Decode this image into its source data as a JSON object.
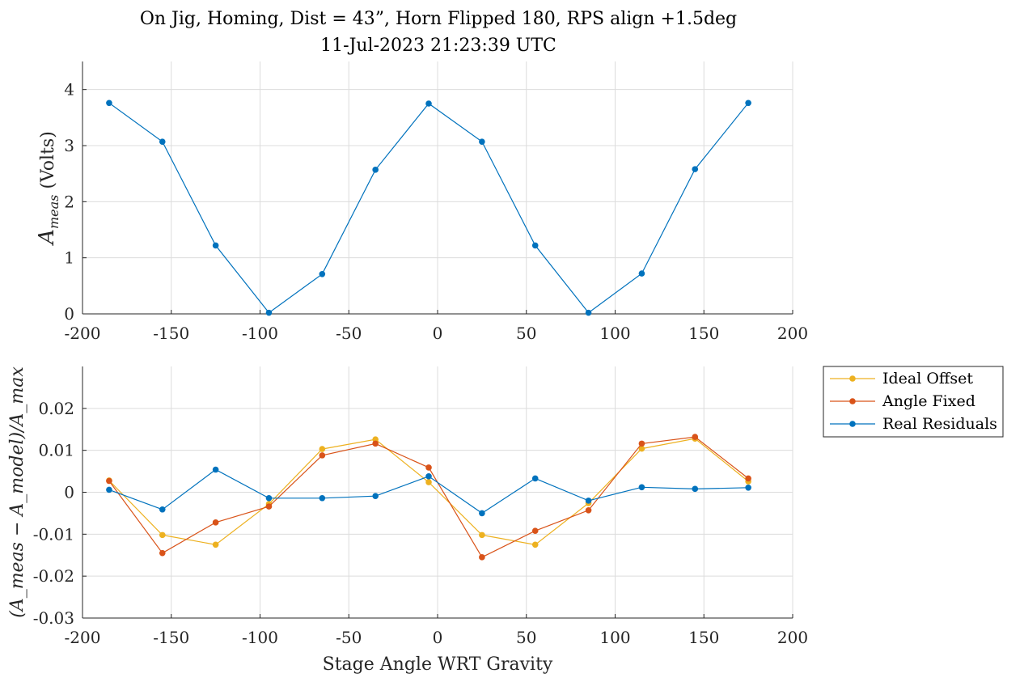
{
  "title_line1": "On Jig, Homing, Dist = 43”, Horn Flipped 180, RPS align +1.5deg",
  "title_line2": "11-Jul-2023 21:23:39 UTC",
  "chart_data": [
    {
      "type": "line",
      "ylabel_main": "A",
      "ylabel_sub": "meas",
      "ylabel_unit": " (Volts)",
      "xlim": [
        -200,
        200
      ],
      "ylim": [
        0,
        4.5
      ],
      "xticks": [
        -200,
        -150,
        -100,
        -50,
        0,
        50,
        100,
        150,
        200
      ],
      "yticks": [
        0,
        1,
        2,
        3,
        4
      ],
      "grid": true,
      "x": [
        -185,
        -155,
        -125,
        -95,
        -65,
        -35,
        -5,
        25,
        55,
        85,
        115,
        145,
        175
      ],
      "series": [
        {
          "color": "#0072bd",
          "values": [
            3.76,
            3.07,
            1.22,
            0.02,
            0.71,
            2.57,
            3.75,
            3.07,
            1.22,
            0.02,
            0.72,
            2.58,
            3.76
          ]
        }
      ]
    },
    {
      "type": "line",
      "ylabel": "(A_meas − A_model)/A_max",
      "xlabel": "Stage Angle WRT Gravity",
      "xlim": [
        -200,
        200
      ],
      "ylim": [
        -0.03,
        0.03
      ],
      "xticks": [
        -200,
        -150,
        -100,
        -50,
        0,
        50,
        100,
        150,
        200
      ],
      "yticks": [
        -0.03,
        -0.02,
        -0.01,
        0,
        0.01,
        0.02
      ],
      "ytick_labels": [
        "-0.03",
        "-0.02",
        "-0.01",
        "0",
        "0.01",
        "0.02"
      ],
      "grid": true,
      "legend_position": "outside-right",
      "x": [
        -185,
        -155,
        -125,
        -95,
        -65,
        -35,
        -5,
        25,
        55,
        85,
        115,
        145,
        175
      ],
      "series": [
        {
          "name": "Ideal Offset",
          "color": "#edb120",
          "values": [
            0.0028,
            -0.0102,
            -0.0125,
            -0.0028,
            0.0103,
            0.0126,
            0.0024,
            -0.0102,
            -0.0125,
            -0.0026,
            0.0104,
            0.0128,
            0.0026
          ]
        },
        {
          "name": "Angle Fixed",
          "color": "#d95319",
          "values": [
            0.0027,
            -0.0145,
            -0.0072,
            -0.0034,
            0.0088,
            0.0116,
            0.0059,
            -0.0155,
            -0.0092,
            -0.0043,
            0.0116,
            0.0132,
            0.0033
          ]
        },
        {
          "name": "Real Residuals",
          "color": "#0072bd",
          "values": [
            0.0006,
            -0.0041,
            0.0054,
            -0.0014,
            -0.0014,
            -0.0009,
            0.0038,
            -0.005,
            0.0033,
            -0.002,
            0.0012,
            0.0008,
            0.0011
          ]
        }
      ]
    }
  ]
}
